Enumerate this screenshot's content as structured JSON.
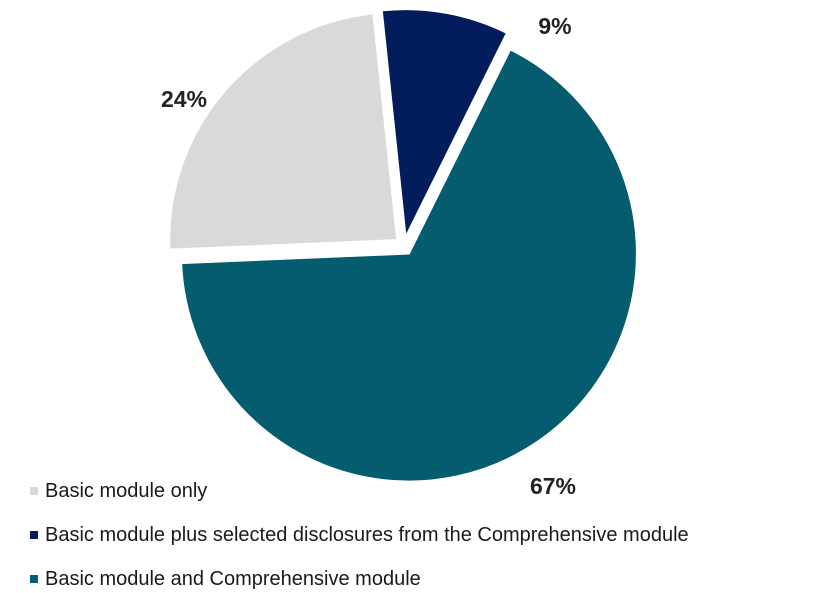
{
  "chart_data": {
    "type": "pie",
    "slices": [
      {
        "label": "Basic module only",
        "value": 24,
        "value_label": "24%",
        "color": "#d9d9d9"
      },
      {
        "label": "Basic module plus selected disclosures from the Comprehensive module",
        "value": 9,
        "value_label": "9%",
        "color": "#031d5c"
      },
      {
        "label": "Basic module and Comprehensive module",
        "value": 67,
        "value_label": "67%",
        "color": "#055c6e"
      }
    ],
    "legend_position": "bottom-left"
  }
}
